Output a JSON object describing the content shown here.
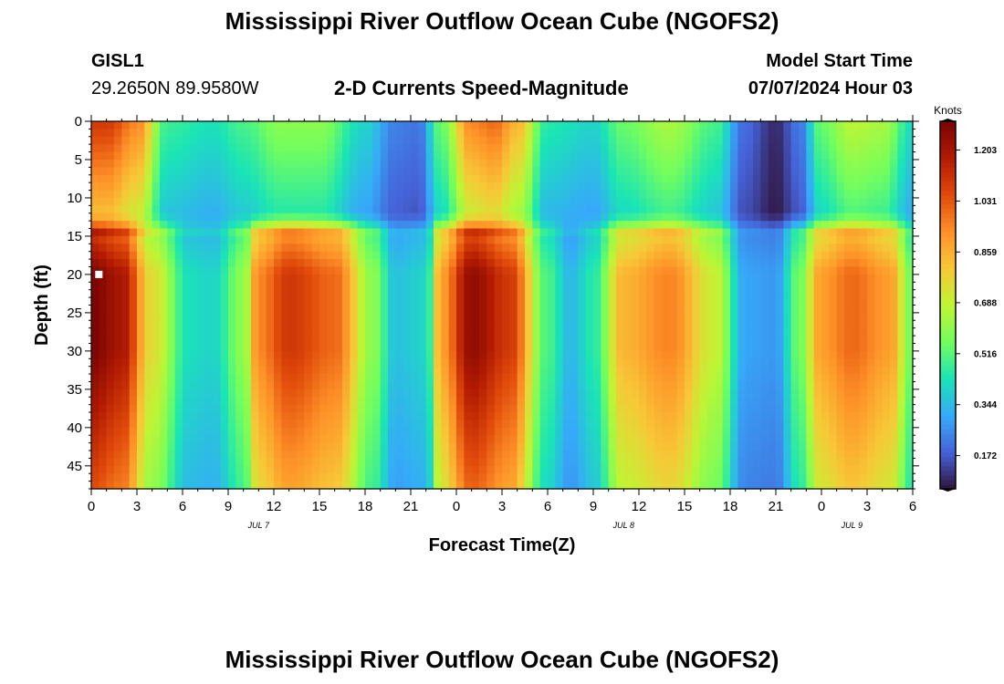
{
  "header": {
    "title": "Mississippi River Outflow Ocean Cube (NGOFS2)",
    "station_id": "GISL1",
    "station_coords": "29.2650N  89.9580W",
    "subtitle": "2-D Currents Speed-Magnitude",
    "model_start_label": "Model Start Time",
    "model_start_value": "07/07/2024 Hour 03"
  },
  "footer": {
    "title": "Mississippi River Outflow Ocean Cube (NGOFS2)"
  },
  "chart_data": {
    "type": "heatmap",
    "title": "2-D Currents Speed-Magnitude",
    "xlabel": "Forecast Time(Z)",
    "ylabel": "Depth (ft)",
    "x_range_hours": [
      0,
      54
    ],
    "x_tick_labels": [
      "0",
      "3",
      "6",
      "9",
      "12",
      "15",
      "18",
      "21",
      "0",
      "3",
      "6",
      "9",
      "12",
      "15",
      "18",
      "21",
      "0",
      "3",
      "6"
    ],
    "date_labels": [
      {
        "label": "JUL 7",
        "at_hour": 11
      },
      {
        "label": "JUL 8",
        "at_hour": 35
      },
      {
        "label": "JUL 9",
        "at_hour": 50
      }
    ],
    "ylim": [
      0,
      48
    ],
    "y_inverted": true,
    "y_ticks": [
      0,
      5,
      10,
      15,
      20,
      25,
      30,
      35,
      40,
      45
    ],
    "colorbar": {
      "unit": "Knots",
      "ticks": [
        0.172,
        0.344,
        0.516,
        0.688,
        0.859,
        1.031,
        1.203
      ],
      "range": [
        0.06,
        1.3
      ],
      "colormap": "turbo"
    },
    "lower_layer_top_depth_ft": 15,
    "upper_layer_speed_knots": [
      {
        "hour": 0,
        "speed": 1.1
      },
      {
        "hour": 1,
        "speed": 1.1
      },
      {
        "hour": 3,
        "speed": 0.95
      },
      {
        "hour": 5,
        "speed": 0.48
      },
      {
        "hour": 8,
        "speed": 0.43
      },
      {
        "hour": 10,
        "speed": 0.5
      },
      {
        "hour": 12.5,
        "speed": 0.6
      },
      {
        "hour": 15,
        "speed": 0.6
      },
      {
        "hour": 18,
        "speed": 0.4
      },
      {
        "hour": 20,
        "speed": 0.24
      },
      {
        "hour": 21.5,
        "speed": 0.22
      },
      {
        "hour": 23,
        "speed": 0.55
      },
      {
        "hour": 25,
        "speed": 0.95
      },
      {
        "hour": 26.5,
        "speed": 1.0
      },
      {
        "hour": 28,
        "speed": 0.85
      },
      {
        "hour": 30,
        "speed": 0.45
      },
      {
        "hour": 33,
        "speed": 0.4
      },
      {
        "hour": 35,
        "speed": 0.55
      },
      {
        "hour": 38,
        "speed": 0.65
      },
      {
        "hour": 41,
        "speed": 0.5
      },
      {
        "hour": 43,
        "speed": 0.2
      },
      {
        "hour": 45,
        "speed": 0.1
      },
      {
        "hour": 46.5,
        "speed": 0.22
      },
      {
        "hour": 48,
        "speed": 0.55
      },
      {
        "hour": 50,
        "speed": 0.68
      },
      {
        "hour": 52,
        "speed": 0.65
      },
      {
        "hour": 54,
        "speed": 0.42
      }
    ],
    "lower_layer_speed_knots": [
      {
        "hour": 0,
        "speed": 1.3
      },
      {
        "hour": 2,
        "speed": 1.2
      },
      {
        "hour": 4,
        "speed": 0.75
      },
      {
        "hour": 6.5,
        "speed": 0.42
      },
      {
        "hour": 8,
        "speed": 0.4
      },
      {
        "hour": 10,
        "speed": 0.6
      },
      {
        "hour": 11,
        "speed": 0.95
      },
      {
        "hour": 13,
        "speed": 1.1
      },
      {
        "hour": 16,
        "speed": 1.0
      },
      {
        "hour": 18.5,
        "speed": 0.6
      },
      {
        "hour": 20,
        "speed": 0.36
      },
      {
        "hour": 22,
        "speed": 0.4
      },
      {
        "hour": 23,
        "speed": 0.9
      },
      {
        "hour": 25,
        "speed": 1.25
      },
      {
        "hour": 27.5,
        "speed": 1.1
      },
      {
        "hour": 30,
        "speed": 0.5
      },
      {
        "hour": 31.5,
        "speed": 0.34
      },
      {
        "hour": 33,
        "speed": 0.45
      },
      {
        "hour": 35,
        "speed": 0.85
      },
      {
        "hour": 38,
        "speed": 0.95
      },
      {
        "hour": 41,
        "speed": 0.7
      },
      {
        "hour": 43,
        "speed": 0.3
      },
      {
        "hour": 45,
        "speed": 0.28
      },
      {
        "hour": 46.5,
        "speed": 0.55
      },
      {
        "hour": 48,
        "speed": 0.9
      },
      {
        "hour": 50,
        "speed": 1.0
      },
      {
        "hour": 52.5,
        "speed": 0.9
      },
      {
        "hour": 54,
        "speed": 0.55
      }
    ],
    "station_marker": {
      "hour": 0.5,
      "depth_ft": 20
    }
  }
}
